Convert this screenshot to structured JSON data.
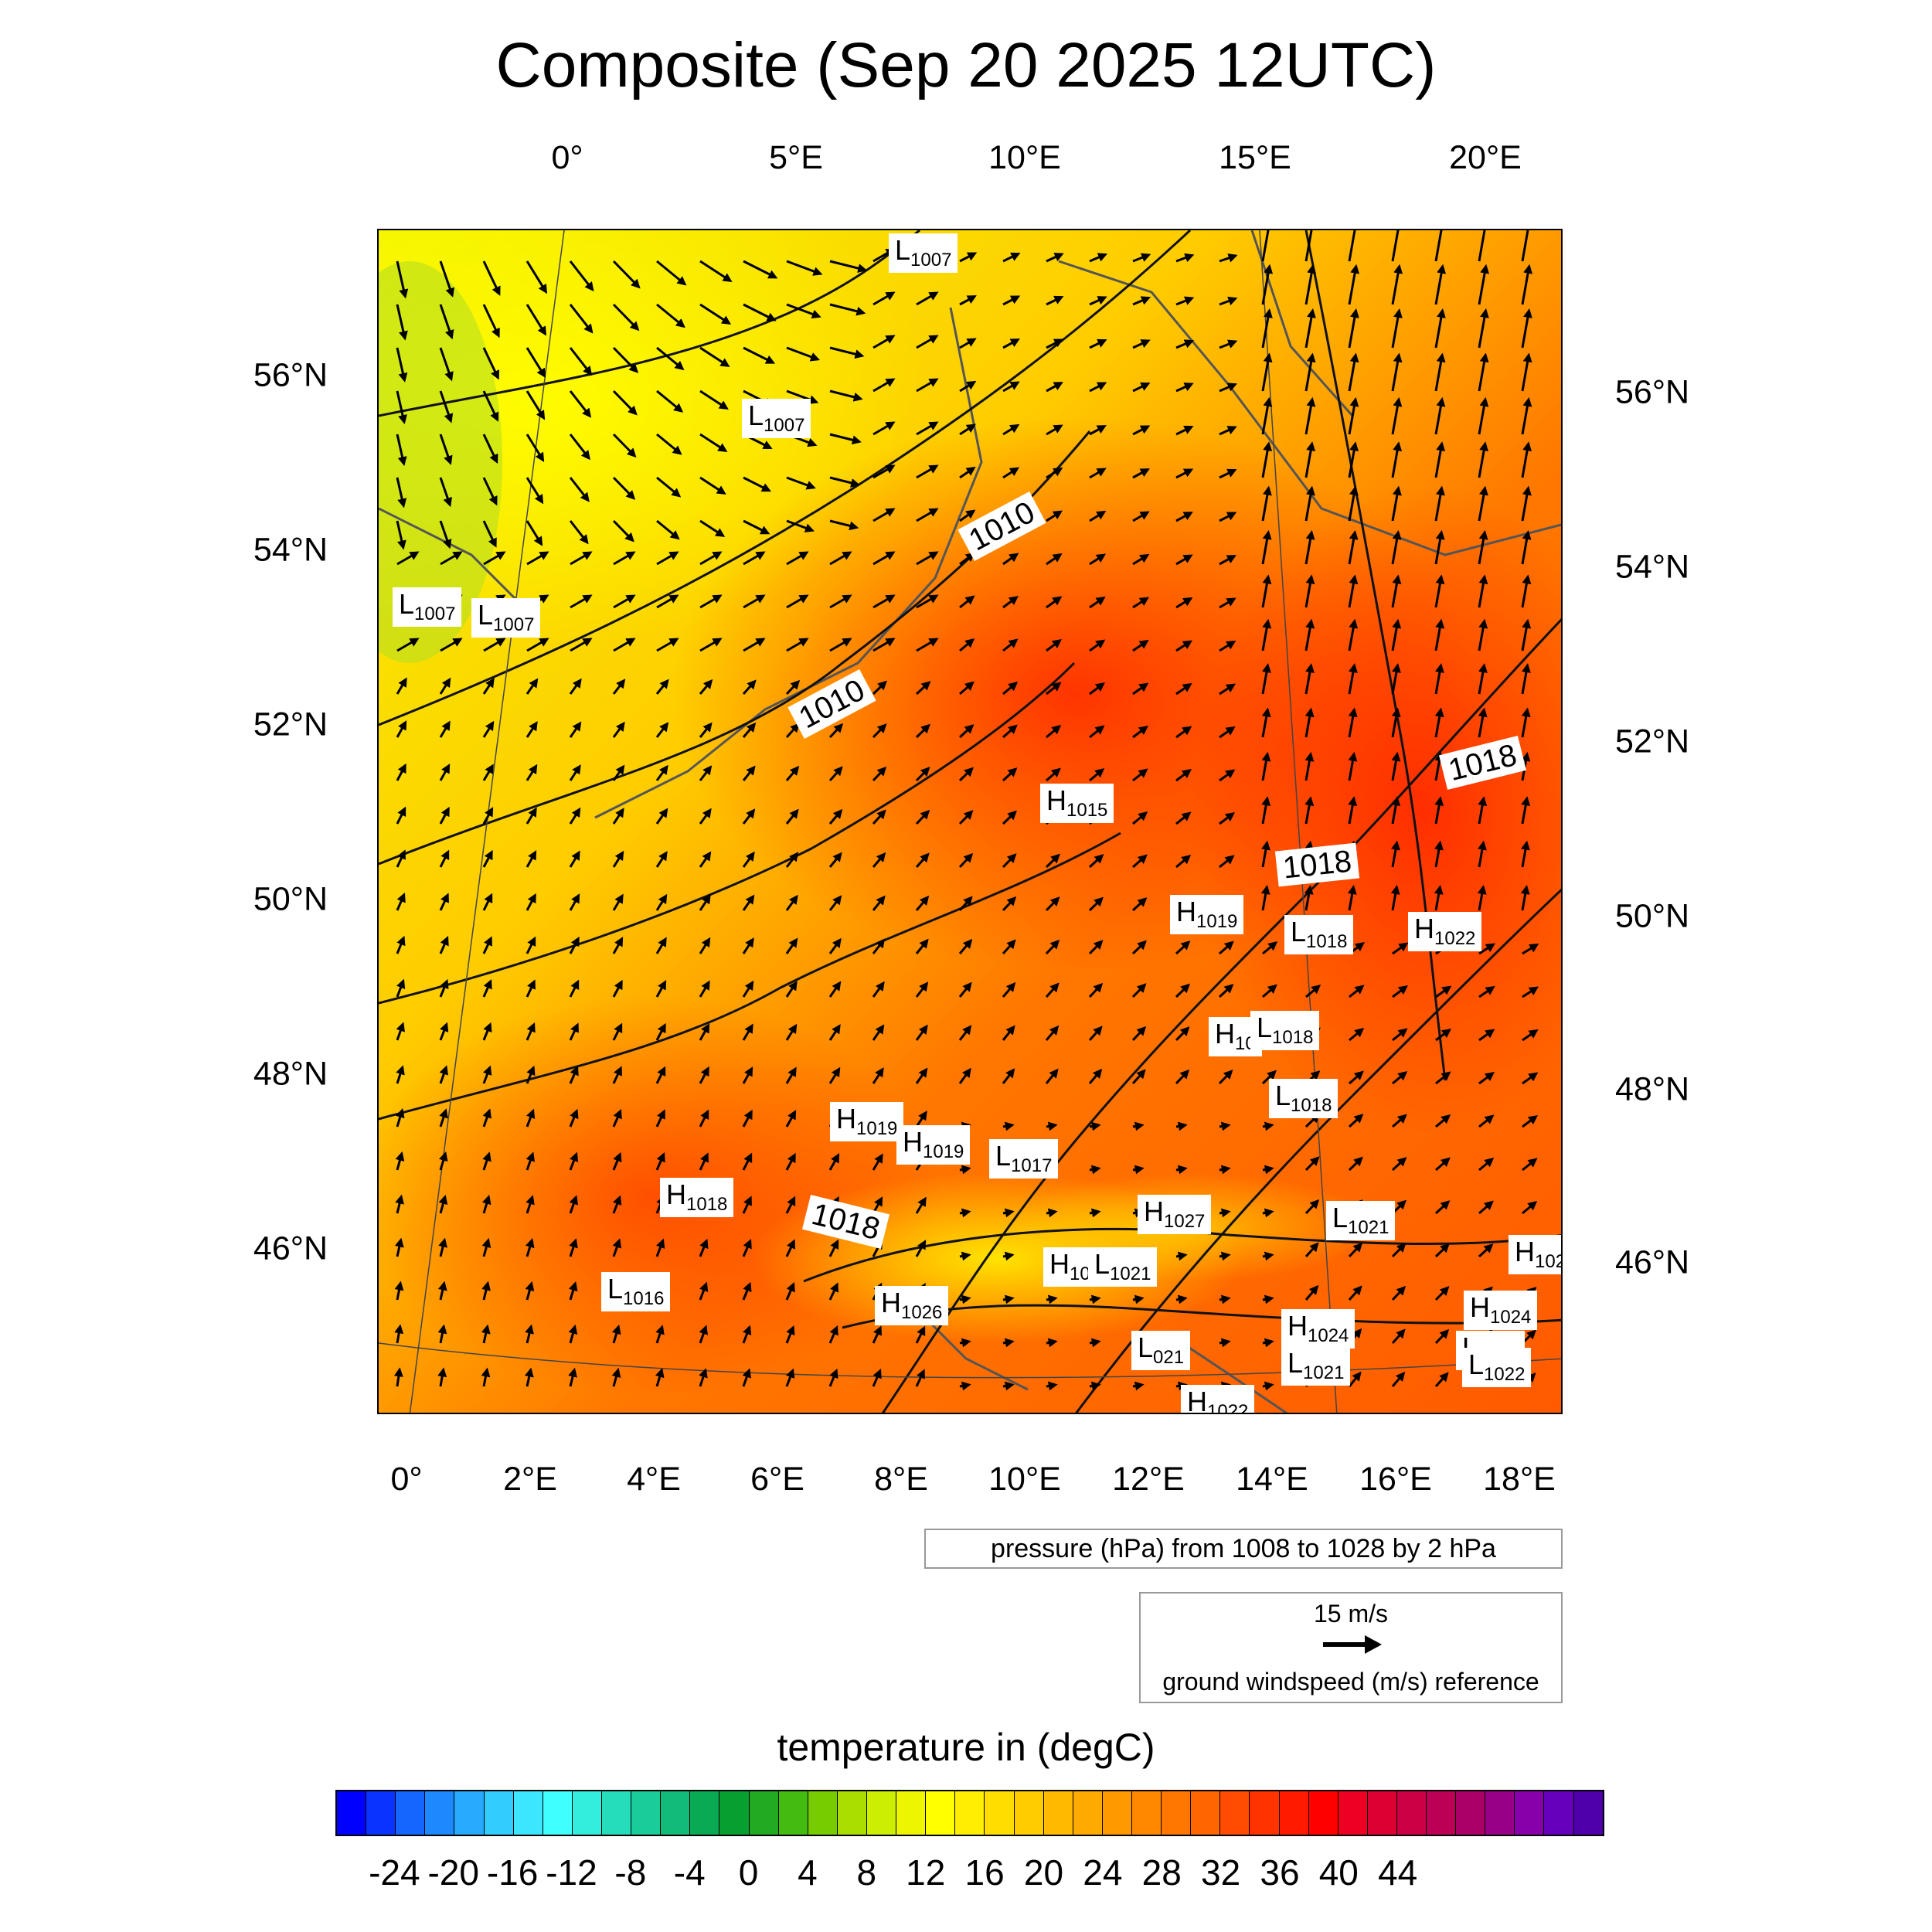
{
  "title": "Composite (Sep 20 2025 12UTC)",
  "top_lon_ticks": [
    "0°",
    "5°E",
    "10°E",
    "15°E",
    "20°E"
  ],
  "bottom_lon_ticks": [
    "0°",
    "2°E",
    "4°E",
    "6°E",
    "8°E",
    "10°E",
    "12°E",
    "14°E",
    "16°E",
    "18°E"
  ],
  "left_lat_ticks": [
    "56°N",
    "54°N",
    "52°N",
    "50°N",
    "48°N",
    "46°N"
  ],
  "right_lat_ticks": [
    "56°N",
    "54°N",
    "52°N",
    "50°N",
    "48°N",
    "46°N"
  ],
  "pressure_centers": [
    {
      "type": "L",
      "value": "1007"
    },
    {
      "type": "L",
      "value": "1007"
    },
    {
      "type": "L",
      "value": "1007"
    },
    {
      "type": "L",
      "value": "1007"
    },
    {
      "type": "H",
      "value": "1015"
    },
    {
      "type": "H",
      "value": "1019"
    },
    {
      "type": "L",
      "value": "1018"
    },
    {
      "type": "H",
      "value": "1022"
    },
    {
      "type": "H",
      "value": "10"
    },
    {
      "type": "L",
      "value": "1018"
    },
    {
      "type": "L",
      "value": "1018"
    },
    {
      "type": "H",
      "value": "1019"
    },
    {
      "type": "H",
      "value": "1019"
    },
    {
      "type": "L",
      "value": "1017"
    },
    {
      "type": "H",
      "value": "1018"
    },
    {
      "type": "H",
      "value": "1027"
    },
    {
      "type": "L",
      "value": "1021"
    },
    {
      "type": "H",
      "value": "102"
    },
    {
      "type": "H",
      "value": "10"
    },
    {
      "type": "L",
      "value": "1021"
    },
    {
      "type": "L",
      "value": "1016"
    },
    {
      "type": "H",
      "value": "1026"
    },
    {
      "type": "H",
      "value": "1024"
    },
    {
      "type": "L",
      "value": "1021"
    },
    {
      "type": "H",
      "value": "1024"
    },
    {
      "type": "L",
      "value": "021"
    },
    {
      "type": "L",
      "value": "1021"
    },
    {
      "type": "L",
      "value": "1022"
    },
    {
      "type": "H",
      "value": "1022"
    }
  ],
  "isobar_labels": [
    "1010",
    "1010",
    "1018",
    "1018",
    "1018"
  ],
  "pressure_legend": "pressure (hPa) from 1008 to 1028 by 2 hPa",
  "wind_reference": {
    "value_label": "15 m/s",
    "caption": "ground windspeed (m/s) reference"
  },
  "colorbar": {
    "title": "temperature in (degC)",
    "tick_labels": [
      "-24",
      "-20",
      "-16",
      "-12",
      "-8",
      "-4",
      "0",
      "4",
      "8",
      "12",
      "16",
      "20",
      "24",
      "28",
      "32",
      "36",
      "40",
      "44"
    ],
    "colors": [
      "#0000ff",
      "#0a33ff",
      "#1466ff",
      "#1e88ff",
      "#28aaff",
      "#32ccff",
      "#3ce6ff",
      "#40ffff",
      "#33eedd",
      "#26ddbb",
      "#1acc99",
      "#12bb77",
      "#0aaa55",
      "#06a030",
      "#22aa22",
      "#44bb11",
      "#77cc00",
      "#aadd00",
      "#ccee00",
      "#eef500",
      "#ffff00",
      "#ffee00",
      "#ffdd00",
      "#ffcc00",
      "#ffbb00",
      "#ffaa00",
      "#ff9900",
      "#ff8800",
      "#ff7700",
      "#ff6600",
      "#ff4c00",
      "#ff3300",
      "#ff1a00",
      "#ff0000",
      "#ee0022",
      "#dd0033",
      "#cc0044",
      "#bb0055",
      "#aa0066",
      "#990088",
      "#8800aa",
      "#6600bb",
      "#5000aa"
    ]
  }
}
